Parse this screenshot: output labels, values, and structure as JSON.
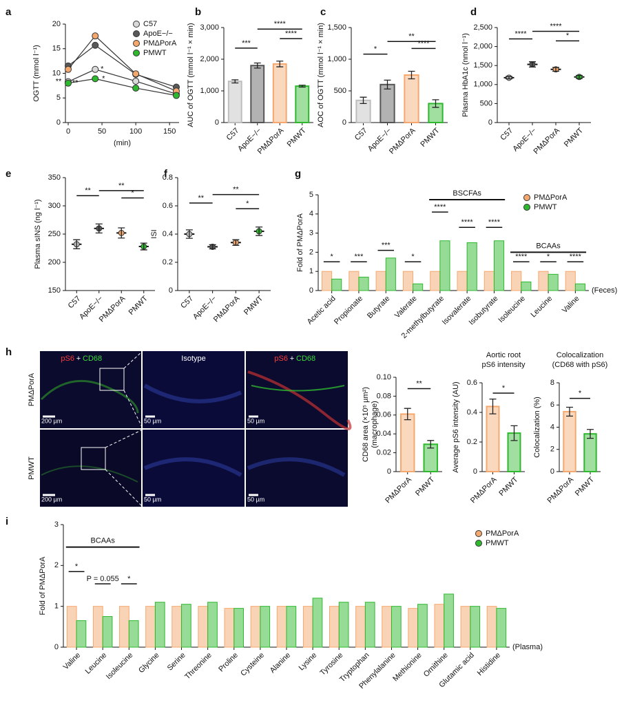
{
  "chart_data": [
    {
      "panel": "a",
      "type": "line",
      "ylabel": "OGTT (mmol l⁻¹)",
      "xlabel": "(min)",
      "x": [
        0,
        40,
        100,
        160
      ],
      "xlim": [
        0,
        160
      ],
      "xticks": [
        0,
        50,
        100,
        150
      ],
      "ylim": [
        0,
        20
      ],
      "yticks": [
        0,
        5,
        10,
        15,
        20
      ],
      "legend": "upper right",
      "significance": [
        "**",
        "*",
        "**",
        "*"
      ],
      "series": [
        {
          "name": "C57",
          "color": "#d9d9d9",
          "values": [
            8.3,
            10.8,
            8.4,
            5.8
          ]
        },
        {
          "name": "ApoE−/−",
          "color": "#595959",
          "values": [
            11.5,
            15.7,
            9.8,
            7.2
          ]
        },
        {
          "name": "PMΔPorA",
          "color": "#f4a86e",
          "values": [
            10.8,
            17.6,
            9.9,
            6.4
          ]
        },
        {
          "name": "PMWT",
          "color": "#2eb82e",
          "values": [
            8.0,
            8.9,
            7.0,
            5.5
          ]
        }
      ]
    },
    {
      "panel": "b",
      "type": "bar",
      "ylabel": "AUC of OGTT (mmol l⁻¹ × min)",
      "categories": [
        "C57",
        "ApoE−/−",
        "PMΔPorA",
        "PMWT"
      ],
      "values": [
        1300,
        1800,
        1850,
        1150
      ],
      "errors": [
        50,
        80,
        90,
        30
      ],
      "colors": [
        "#bdbdbd",
        "#555555",
        "#f4a86e",
        "#2eb82e"
      ],
      "ylim": [
        0,
        3000
      ],
      "yticks": [
        0,
        {
          "value": 1000,
          "label": "1,000"
        },
        {
          "value": 2000,
          "label": "2,000"
        },
        {
          "value": 3000,
          "label": "3,000"
        }
      ],
      "significance": [
        "***",
        "****",
        "****"
      ]
    },
    {
      "panel": "c",
      "type": "bar",
      "ylabel": "AOC of OGTT (mmol l⁻¹ × min)",
      "categories": [
        "C57",
        "ApoE−/−",
        "PMΔPorA",
        "PMWT"
      ],
      "values": [
        350,
        600,
        750,
        300
      ],
      "errors": [
        50,
        70,
        60,
        60
      ],
      "colors": [
        "#bdbdbd",
        "#555555",
        "#f4a86e",
        "#2eb82e"
      ],
      "ylim": [
        0,
        1500
      ],
      "yticks": [
        0,
        500,
        {
          "value": 1000,
          "label": "1,000"
        },
        {
          "value": 1500,
          "label": "1,500"
        }
      ],
      "significance": [
        "*",
        "**",
        "****"
      ]
    },
    {
      "panel": "d",
      "type": "dot",
      "ylabel": "Plasma HbA1c (nmol l⁻¹)",
      "categories": [
        "C57",
        "ApoE−/−",
        "PMΔPorA",
        "PMWT"
      ],
      "values": [
        1180,
        1530,
        1400,
        1200
      ],
      "errors": [
        30,
        70,
        50,
        40
      ],
      "colors": [
        "#bdbdbd",
        "#555555",
        "#f4a86e",
        "#2eb82e"
      ],
      "ylim": [
        0,
        2500
      ],
      "yticks": [
        0,
        500,
        {
          "value": 1000,
          "label": "1,000"
        },
        {
          "value": 1500,
          "label": "1,500"
        },
        {
          "value": 2000,
          "label": "2,000"
        },
        {
          "value": 2500,
          "label": "2,500"
        }
      ],
      "significance": [
        "****",
        "****",
        "*"
      ]
    },
    {
      "panel": "e",
      "type": "dot",
      "ylabel": "Plasma sINS (ng l⁻¹)",
      "categories": [
        "C57",
        "ApoE−/−",
        "PMΔPorA",
        "PMWT"
      ],
      "values": [
        232,
        260,
        252,
        228
      ],
      "errors": [
        8,
        8,
        9,
        6
      ],
      "colors": [
        "#bdbdbd",
        "#555555",
        "#f4a86e",
        "#2eb82e"
      ],
      "ylim": [
        150,
        350
      ],
      "yticks": [
        150,
        200,
        250,
        300,
        350
      ],
      "significance": [
        "**",
        "**",
        "*"
      ]
    },
    {
      "panel": "f",
      "type": "dot",
      "ylabel": "ISI",
      "categories": [
        "C57",
        "ApoE−/−",
        "PMΔPorA",
        "PMWT"
      ],
      "values": [
        0.4,
        0.31,
        0.34,
        0.42
      ],
      "errors": [
        0.03,
        0.015,
        0.02,
        0.03
      ],
      "colors": [
        "#bdbdbd",
        "#555555",
        "#f4a86e",
        "#2eb82e"
      ],
      "ylim": [
        0,
        0.8
      ],
      "yticks": [
        0,
        0.2,
        0.4,
        0.6,
        0.8
      ],
      "significance": [
        "**",
        "**",
        "*"
      ]
    },
    {
      "panel": "g",
      "type": "grouped-bar",
      "ylabel": "Fold of PMΔPorA",
      "categories": [
        "Acetic acid",
        "Propionate",
        "Butyrate",
        "Valerate",
        "2-methylbutyrate",
        "Isovalerate",
        "Isobutyrate",
        "Isoleucine",
        "Leucine",
        "Valine"
      ],
      "ylim": [
        0,
        5
      ],
      "yticks": [
        0,
        1,
        2,
        3,
        4,
        5
      ],
      "legend": "upper right",
      "significance": [
        "*",
        "***",
        "***",
        "*",
        "****",
        "****",
        "****",
        "****",
        "*",
        "****"
      ],
      "annotations": [
        "BSCFAs",
        "BCAAs",
        "(Feces)"
      ],
      "series": [
        {
          "name": "PMΔPorA",
          "color": "#f4a86e",
          "values": [
            1,
            1,
            1,
            1,
            1,
            1,
            1,
            1,
            1,
            1
          ]
        },
        {
          "name": "PMWT",
          "color": "#2eb82e",
          "values": [
            0.6,
            0.7,
            1.7,
            0.35,
            2.6,
            2.5,
            2.6,
            0.45,
            0.85,
            0.35
          ]
        }
      ]
    },
    {
      "type": "bar",
      "ylabel": [
        "CD68 area (×10⁵ µm²)",
        "(macrophage)"
      ],
      "categories": [
        "PMΔPorA",
        "PMWT"
      ],
      "values": [
        0.061,
        0.029
      ],
      "errors": [
        0.006,
        0.004
      ],
      "colors": [
        "#f4a86e",
        "#2eb82e"
      ],
      "ylim": [
        0,
        0.1
      ],
      "yticks": [
        0,
        0.02,
        0.04,
        0.06,
        0.08,
        {
          "value": 0.1,
          "label": "0.10"
        }
      ],
      "significance": [
        "**"
      ]
    },
    {
      "type": "bar",
      "title": [
        "Aortic root",
        "pS6 intensity"
      ],
      "ylabel": "Average pS6 intensity (AU)",
      "categories": [
        "PMΔPorA",
        "PMWT"
      ],
      "values": [
        0.44,
        0.26
      ],
      "errors": [
        0.05,
        0.05
      ],
      "colors": [
        "#f4a86e",
        "#2eb82e"
      ],
      "ylim": [
        0,
        0.6
      ],
      "yticks": [
        0,
        0.2,
        0.4,
        0.6
      ],
      "significance": [
        "*"
      ]
    },
    {
      "type": "bar",
      "title": [
        "Colocalization",
        "(CD68 with pS6)"
      ],
      "ylabel": "Colocalization (%)",
      "categories": [
        "PMΔPorA",
        "PMWT"
      ],
      "values": [
        5.4,
        3.4
      ],
      "errors": [
        0.4,
        0.4
      ],
      "colors": [
        "#f4a86e",
        "#2eb82e"
      ],
      "ylim": [
        0,
        8
      ],
      "yticks": [
        0,
        2,
        4,
        6,
        8
      ],
      "significance": [
        "*"
      ]
    },
    {
      "panel": "i",
      "type": "grouped-bar",
      "ylabel": "Fold of PMΔPorA",
      "categories": [
        "Valine",
        "Leucine",
        "Isoleucine",
        "Glycine",
        "Serine",
        "Threonine",
        "Proline",
        "Cysteine",
        "Alanine",
        "Lysine",
        "Tyrosine",
        "Tryptophan",
        "Phenylalanine",
        "Methionine",
        "Ornithine",
        "Glutamic acid",
        "Histidine"
      ],
      "ylim": [
        0,
        3
      ],
      "yticks": [
        0,
        1,
        2,
        3
      ],
      "legend": "upper right",
      "significance": [
        "*",
        "P = 0.055",
        "*"
      ],
      "annotations": [
        "BCAAs",
        "(Plasma)"
      ],
      "series": [
        {
          "name": "PMΔPorA",
          "color": "#f4a86e",
          "values": [
            1.0,
            1.0,
            1.0,
            1.0,
            1.0,
            1.0,
            0.95,
            1.0,
            1.0,
            1.0,
            1.0,
            1.0,
            1.0,
            0.95,
            1.05,
            1.0,
            1.0
          ]
        },
        {
          "name": "PMWT",
          "color": "#2eb82e",
          "values": [
            0.65,
            0.75,
            0.65,
            1.1,
            1.05,
            1.1,
            0.95,
            1.0,
            1.0,
            1.2,
            1.1,
            1.1,
            1.0,
            1.05,
            1.3,
            1.0,
            0.95
          ]
        }
      ]
    }
  ],
  "micrographs": {
    "panel": "h",
    "rows": [
      "PMΔPorA",
      "PMWT"
    ],
    "stain_a": "pS6",
    "plus": "+",
    "stain_b": "CD68",
    "isotype": "Isotype",
    "scale_large": "200 µm",
    "scale_small": "50 µm"
  }
}
